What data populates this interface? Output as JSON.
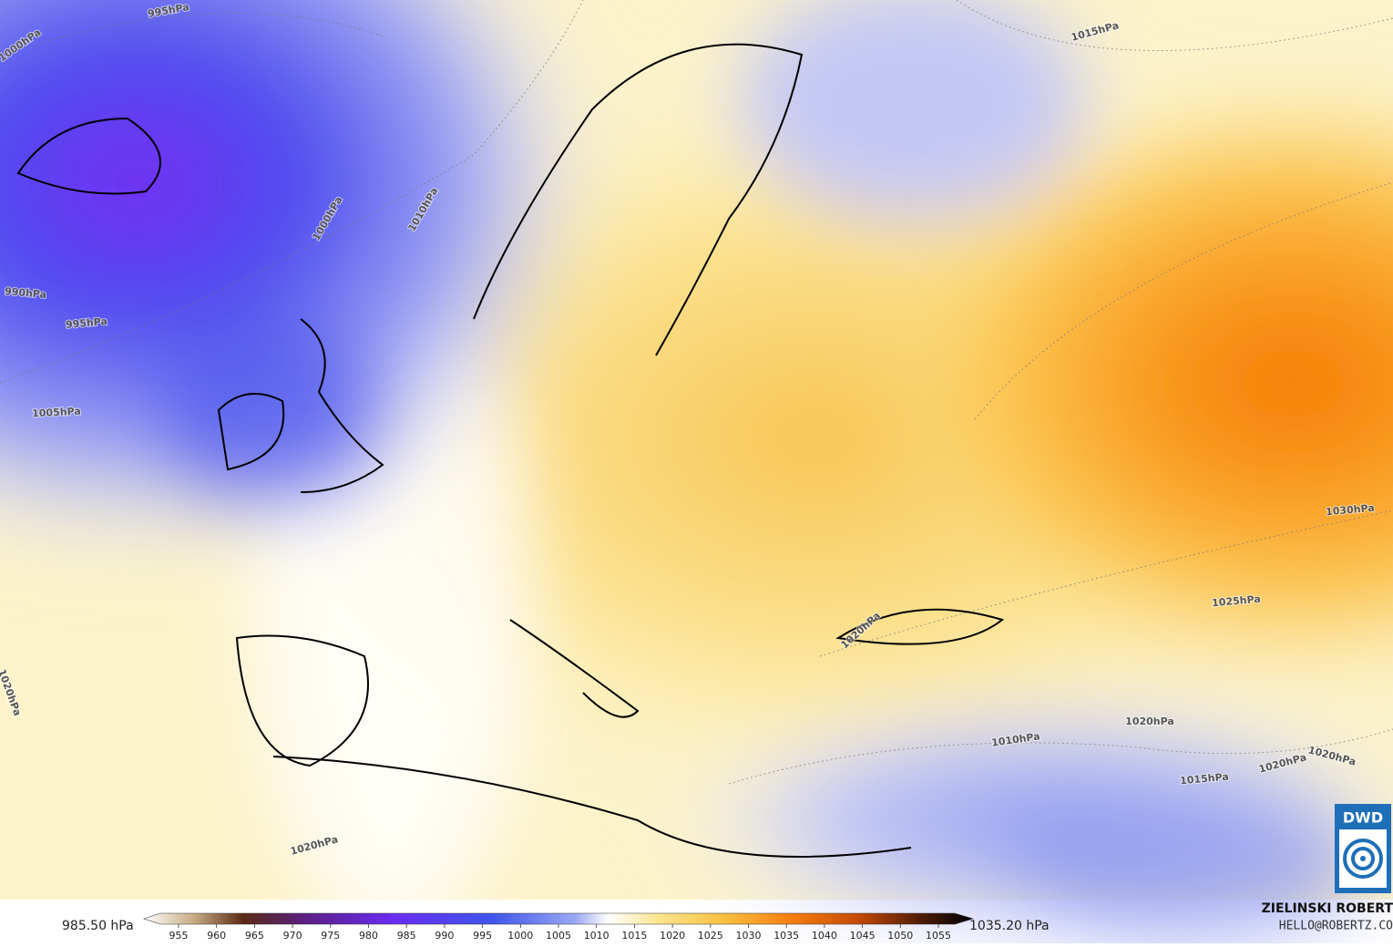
{
  "isobar_labels": [
    "995hPa",
    "1000hPa",
    "990hPa",
    "995hPa",
    "1000hPa",
    "1010hPa",
    "1005hPa",
    "1015hPa",
    "1030hPa",
    "1025hPa",
    "1020hPa",
    "1020hPa",
    "1010hPa",
    "1020hPa",
    "1020hPa",
    "1020hPa",
    "1015hPa",
    "1020hPa"
  ],
  "colorbar": {
    "min_label": "985.50 hPa",
    "max_label": "1035.20 hPa",
    "ticks": [
      955,
      960,
      965,
      970,
      975,
      980,
      985,
      990,
      995,
      1000,
      1005,
      1010,
      1015,
      1020,
      1025,
      1030,
      1035,
      1040,
      1045,
      1050,
      1055
    ]
  },
  "credits": {
    "author": "ZIELINSKI ROBERT",
    "email": "HELLO@ROBERTZ.CO"
  },
  "logo": "DWD"
}
